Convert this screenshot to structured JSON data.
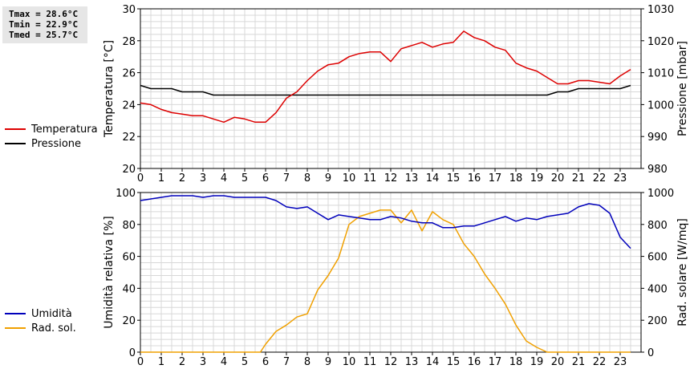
{
  "stats": {
    "tmax": "Tmax = 28.6°C",
    "tmin": "Tmin = 22.9°C",
    "tmed": "Tmed = 25.7°C"
  },
  "colors": {
    "temperature": "#dd0000",
    "pressure": "#000000",
    "humidity": "#0000bb",
    "solar": "#f0a000",
    "grid": "#d8d8d8"
  },
  "chart_data": [
    {
      "type": "line",
      "title": "",
      "xlabel": "",
      "x_ticks": [
        0,
        1,
        2,
        3,
        4,
        5,
        6,
        7,
        8,
        9,
        10,
        11,
        12,
        13,
        14,
        15,
        16,
        17,
        18,
        19,
        20,
        21,
        22,
        23
      ],
      "xlim": [
        0,
        24
      ],
      "ylabel": "Temperatura [°C]",
      "ylim": [
        20,
        30
      ],
      "y_ticks": [
        20,
        22,
        24,
        26,
        28,
        30
      ],
      "y2label": "Pressione [mbar]",
      "y2lim": [
        980,
        1030
      ],
      "y2_ticks": [
        980,
        990,
        1000,
        1010,
        1020,
        1030
      ],
      "grid": true,
      "legend": [
        "Temperatura",
        "Pressione"
      ],
      "series": [
        {
          "name": "Temperatura",
          "axis": "left",
          "x": [
            0,
            0.5,
            1,
            1.5,
            2,
            2.5,
            3,
            3.5,
            4,
            4.5,
            5,
            5.5,
            6,
            6.5,
            7,
            7.5,
            8,
            8.5,
            9,
            9.5,
            10,
            10.5,
            11,
            11.5,
            12,
            12.5,
            13,
            13.5,
            14,
            14.5,
            15,
            15.5,
            16,
            16.5,
            17,
            17.5,
            18,
            18.5,
            19,
            19.5,
            20,
            20.5,
            21,
            21.5,
            22,
            22.5,
            23,
            23.5
          ],
          "values": [
            24.1,
            24.0,
            23.7,
            23.5,
            23.4,
            23.3,
            23.3,
            23.1,
            22.9,
            23.2,
            23.1,
            22.9,
            22.9,
            23.5,
            24.4,
            24.8,
            25.5,
            26.1,
            26.5,
            26.6,
            27.0,
            27.2,
            27.3,
            27.3,
            26.7,
            27.5,
            27.7,
            27.9,
            27.6,
            27.8,
            27.9,
            28.6,
            28.2,
            28.0,
            27.6,
            27.4,
            26.6,
            26.3,
            26.1,
            25.7,
            25.3,
            25.3,
            25.5,
            25.5,
            25.4,
            25.3,
            25.8,
            26.2
          ]
        },
        {
          "name": "Pressione",
          "axis": "right",
          "x": [
            0,
            0.5,
            1,
            1.5,
            2,
            2.5,
            3,
            3.5,
            4,
            4.5,
            5,
            5.5,
            6,
            6.5,
            7,
            7.5,
            8,
            8.5,
            9,
            9.5,
            10,
            10.5,
            11,
            11.5,
            12,
            12.5,
            13,
            13.5,
            14,
            14.5,
            15,
            15.5,
            16,
            16.5,
            17,
            17.5,
            18,
            18.5,
            19,
            19.5,
            20,
            20.5,
            21,
            21.5,
            22,
            22.5,
            23,
            23.5
          ],
          "values": [
            1006,
            1005,
            1005,
            1005,
            1004,
            1004,
            1004,
            1003,
            1003,
            1003,
            1003,
            1003,
            1003,
            1003,
            1003,
            1003,
            1003,
            1003,
            1003,
            1003,
            1003,
            1003,
            1003,
            1003,
            1003,
            1003,
            1003,
            1003,
            1003,
            1003,
            1003,
            1003,
            1003,
            1003,
            1003,
            1003,
            1003,
            1003,
            1003,
            1003,
            1004,
            1004,
            1005,
            1005,
            1005,
            1005,
            1005,
            1006
          ]
        }
      ]
    },
    {
      "type": "line",
      "title": "",
      "xlabel": "",
      "x_ticks": [
        0,
        1,
        2,
        3,
        4,
        5,
        6,
        7,
        8,
        9,
        10,
        11,
        12,
        13,
        14,
        15,
        16,
        17,
        18,
        19,
        20,
        21,
        22,
        23
      ],
      "xlim": [
        0,
        24
      ],
      "ylabel": "Umidità relativa [%]",
      "ylim": [
        0,
        100
      ],
      "y_ticks": [
        0,
        20,
        40,
        60,
        80,
        100
      ],
      "y2label": "Rad. solare [W/mq]",
      "y2lim": [
        0,
        1000
      ],
      "y2_ticks": [
        0,
        200,
        400,
        600,
        800,
        1000
      ],
      "grid": true,
      "legend": [
        "Umidità",
        "Rad. sol."
      ],
      "series": [
        {
          "name": "Umidità",
          "axis": "left",
          "x": [
            0,
            0.5,
            1,
            1.5,
            2,
            2.5,
            3,
            3.5,
            4,
            4.5,
            5,
            5.5,
            6,
            6.5,
            7,
            7.5,
            8,
            8.5,
            9,
            9.5,
            10,
            10.5,
            11,
            11.5,
            12,
            12.5,
            13,
            13.5,
            14,
            14.5,
            15,
            15.5,
            16,
            16.5,
            17,
            17.5,
            18,
            18.5,
            19,
            19.5,
            20,
            20.5,
            21,
            21.5,
            22,
            22.5,
            23,
            23.5
          ],
          "values": [
            95,
            96,
            97,
            98,
            98,
            98,
            97,
            98,
            98,
            97,
            97,
            97,
            97,
            95,
            91,
            90,
            91,
            87,
            83,
            86,
            85,
            84,
            83,
            83,
            85,
            84,
            82,
            81,
            81,
            78,
            78,
            79,
            79,
            81,
            83,
            85,
            82,
            84,
            83,
            85,
            86,
            87,
            91,
            93,
            92,
            87,
            72,
            65
          ]
        },
        {
          "name": "Rad. sol.",
          "axis": "right",
          "x": [
            0,
            0.5,
            1,
            1.5,
            2,
            2.5,
            3,
            3.5,
            4,
            4.5,
            5,
            5.5,
            5.75,
            6,
            6.5,
            7,
            7.5,
            8,
            8.5,
            9,
            9.5,
            10,
            10.5,
            11,
            11.5,
            12,
            12.5,
            13,
            13.5,
            14,
            14.5,
            15,
            15.5,
            16,
            16.5,
            17,
            17.5,
            18,
            18.5,
            19,
            19.5,
            20,
            20.5,
            21,
            21.5,
            22,
            22.5,
            23,
            23.5
          ],
          "values": [
            0,
            0,
            0,
            0,
            0,
            0,
            0,
            0,
            0,
            0,
            0,
            0,
            0,
            50,
            130,
            170,
            220,
            240,
            390,
            480,
            590,
            800,
            850,
            870,
            890,
            890,
            810,
            890,
            760,
            880,
            830,
            800,
            680,
            600,
            490,
            400,
            300,
            170,
            70,
            30,
            0,
            0,
            0,
            0,
            0,
            0,
            0,
            0,
            0
          ]
        }
      ]
    }
  ]
}
